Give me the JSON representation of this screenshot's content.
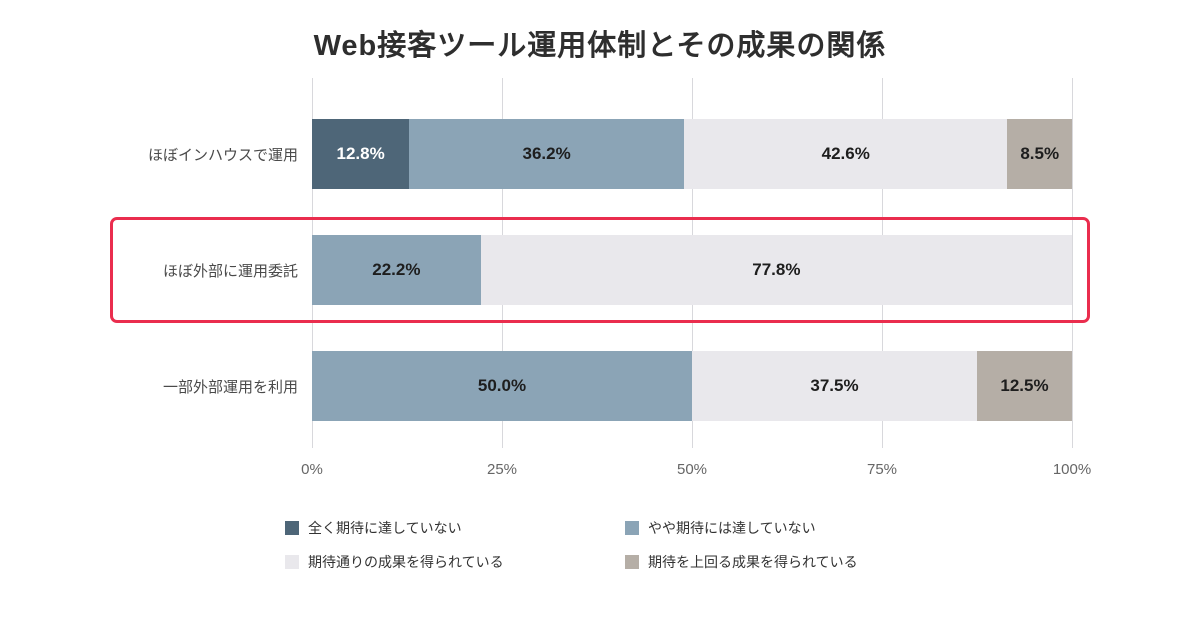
{
  "title": "Web接客ツール運用体制とその成果の関係",
  "chart_data": {
    "type": "bar",
    "orientation": "horizontal",
    "stacked": true,
    "title": "Web接客ツール運用体制とその成果の関係",
    "categories": [
      "ほぼインハウスで運用",
      "ほぼ外部に運用委託",
      "一部外部運用を利用"
    ],
    "series": [
      {
        "name": "全く期待に達していない",
        "color": "#4e6678",
        "label_color": "#ffffff",
        "values": [
          12.8,
          0,
          0
        ]
      },
      {
        "name": "やや期待には達していない",
        "color": "#8ba4b6",
        "label_color": "#1e1e1e",
        "values": [
          36.2,
          22.2,
          50.0
        ]
      },
      {
        "name": "期待通りの成果を得られている",
        "color": "#e9e8ec",
        "label_color": "#1e1e1e",
        "values": [
          42.6,
          77.8,
          37.5
        ]
      },
      {
        "name": "期待を上回る成果を得られている",
        "color": "#b5aea6",
        "label_color": "#1e1e1e",
        "values": [
          8.5,
          0,
          12.5
        ]
      }
    ],
    "xlim": [
      0,
      100
    ],
    "tick_positions": [
      0,
      25,
      50,
      75,
      100
    ],
    "tick_labels": [
      "0%",
      "25%",
      "50%",
      "75%",
      "100%"
    ],
    "grid": true,
    "legend_position": "bottom",
    "highlight": {
      "row_index": 1,
      "color": "#ea2d4e"
    },
    "label_format": "percent_one_decimal"
  }
}
